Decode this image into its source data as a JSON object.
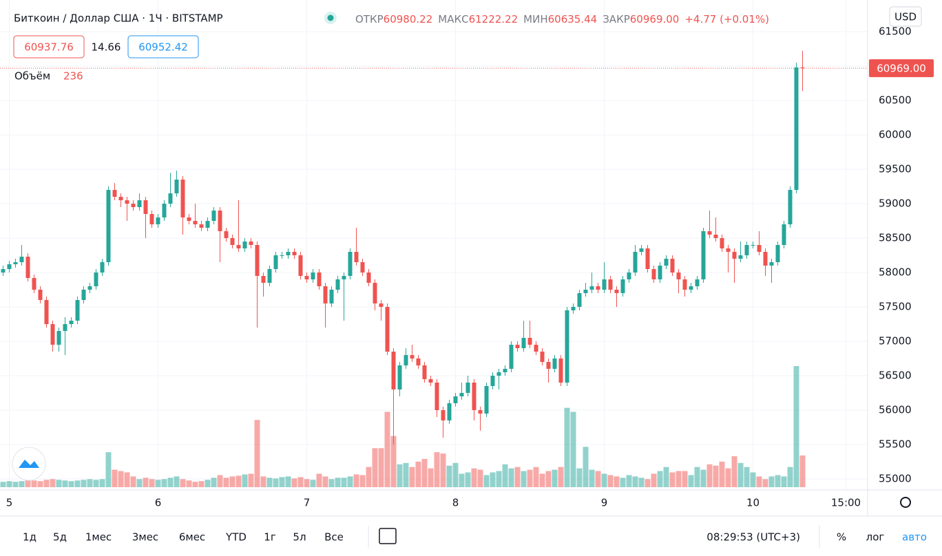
{
  "header": {
    "title": "Биткоин / Доллар США · 1Ч · BITSTAMP",
    "ohlc": [
      {
        "label": "ОТКР",
        "value": "60980.22"
      },
      {
        "label": "МАКС",
        "value": "61222.22"
      },
      {
        "label": "МИН",
        "value": "60635.44"
      },
      {
        "label": "ЗАКР",
        "value": "60969.00"
      }
    ],
    "change": "+4.77 (+0.01%)",
    "currency": "USD",
    "bid": "60937.76",
    "spread": "14.66",
    "ask": "60952.42",
    "volume_label": "Объём"
  },
  "chart_data": {
    "type": "candlestick",
    "x": [
      -1,
      0,
      1,
      2,
      3,
      4,
      5,
      6,
      7,
      8,
      9,
      10,
      11,
      12,
      13,
      14,
      15,
      16,
      17,
      18,
      19,
      20,
      21,
      22,
      23,
      24,
      25,
      26,
      27,
      28,
      29,
      30,
      31,
      32,
      33,
      34,
      35,
      36,
      37,
      38,
      39,
      40,
      41,
      42,
      43,
      44,
      45,
      46,
      47,
      48,
      49,
      50,
      51,
      52,
      53,
      54,
      55,
      56,
      57,
      58,
      59,
      60,
      61,
      62,
      63,
      64,
      65,
      66,
      67,
      68,
      69,
      70,
      71,
      72,
      73,
      74,
      75,
      76,
      77,
      78,
      79,
      80,
      81,
      82,
      83,
      84,
      85,
      86,
      87,
      88,
      89,
      90,
      91,
      92,
      93,
      94,
      95,
      96,
      97,
      98,
      99,
      100,
      101,
      102,
      103,
      104,
      105,
      106,
      107,
      108,
      109,
      110,
      111,
      112,
      113,
      114,
      115,
      116,
      117,
      118,
      119,
      120,
      121,
      122,
      123,
      124,
      125,
      126,
      127,
      128
    ],
    "open": [
      58000,
      58050,
      58120,
      58150,
      58230,
      57920,
      57750,
      57600,
      57250,
      56950,
      57150,
      57250,
      57300,
      57600,
      57750,
      57800,
      58000,
      58150,
      59200,
      59100,
      59050,
      59000,
      58950,
      59050,
      58850,
      58700,
      58800,
      59000,
      59150,
      59350,
      58800,
      58750,
      58700,
      58650,
      58750,
      58900,
      58600,
      58500,
      58400,
      58350,
      58450,
      58400,
      57950,
      57850,
      58050,
      58250,
      58250,
      58300,
      58250,
      57950,
      57900,
      58000,
      57800,
      57550,
      57750,
      57900,
      57950,
      58300,
      58150,
      58000,
      57850,
      57550,
      57500,
      56850,
      56300,
      56650,
      56800,
      56750,
      56650,
      56450,
      56400,
      56000,
      55850,
      56100,
      56200,
      56250,
      56400,
      56000,
      55950,
      56350,
      56500,
      56550,
      56600,
      56950,
      56900,
      57050,
      56950,
      56850,
      56700,
      56600,
      56750,
      56400,
      57450,
      57500,
      57700,
      57750,
      57800,
      57750,
      57900,
      57750,
      57700,
      57900,
      58000,
      58300,
      58350,
      58050,
      57900,
      58100,
      58200,
      58000,
      57900,
      57750,
      57800,
      57900,
      58600,
      58550,
      58500,
      58350,
      58300,
      58200,
      58250,
      58400,
      58400,
      58300,
      58100,
      58150,
      58400,
      58700,
      59200,
      60980.22
    ],
    "high": [
      58100,
      58170,
      58200,
      58400,
      58280,
      57970,
      57800,
      57650,
      57300,
      57200,
      57350,
      57350,
      57650,
      57800,
      57850,
      58050,
      58200,
      59250,
      59300,
      59150,
      59100,
      59050,
      59150,
      59100,
      58900,
      58850,
      59050,
      59450,
      59480,
      59400,
      58850,
      59000,
      58750,
      58800,
      58950,
      58950,
      58650,
      58550,
      59050,
      58500,
      58500,
      58450,
      58000,
      58100,
      58300,
      58300,
      58350,
      58350,
      58300,
      58000,
      58050,
      58050,
      57850,
      57800,
      57950,
      58000,
      58350,
      58650,
      58200,
      58050,
      57900,
      57600,
      57550,
      56900,
      56700,
      56900,
      56950,
      56800,
      56700,
      56500,
      56450,
      56050,
      56150,
      56250,
      56400,
      56500,
      56450,
      56050,
      56400,
      56550,
      56600,
      56650,
      57000,
      57000,
      57300,
      57300,
      57000,
      56900,
      56750,
      56800,
      56800,
      57500,
      57550,
      57750,
      57850,
      58000,
      57850,
      58150,
      57950,
      57800,
      57950,
      58050,
      58400,
      58400,
      58400,
      58100,
      58150,
      58250,
      58250,
      58050,
      57950,
      57850,
      57950,
      58650,
      58900,
      58800,
      58550,
      58400,
      58350,
      58450,
      58450,
      58450,
      58600,
      58350,
      58200,
      58450,
      58750,
      59250,
      61050,
      61222.22
    ],
    "low": [
      57950,
      58000,
      58070,
      58100,
      57870,
      57700,
      57550,
      57200,
      56850,
      56850,
      56800,
      57200,
      57250,
      57550,
      57700,
      57750,
      57950,
      58100,
      59050,
      58950,
      58750,
      58900,
      58900,
      58500,
      58650,
      58650,
      58750,
      58950,
      59100,
      58550,
      58700,
      58650,
      58600,
      58600,
      58700,
      58150,
      58450,
      58350,
      58300,
      58300,
      58350,
      57200,
      57650,
      57800,
      58000,
      58200,
      58200,
      58200,
      57900,
      57850,
      57850,
      57750,
      57200,
      57500,
      57700,
      57300,
      57900,
      58100,
      57950,
      57800,
      57450,
      57300,
      56800,
      55500,
      56200,
      56600,
      56700,
      56600,
      56400,
      56350,
      55900,
      55600,
      55800,
      56050,
      56150,
      56200,
      55850,
      55700,
      55900,
      56300,
      56300,
      56500,
      56550,
      56850,
      56850,
      56900,
      56800,
      56650,
      56400,
      56550,
      56350,
      56350,
      57400,
      57450,
      57650,
      57700,
      57700,
      57700,
      57700,
      57500,
      57650,
      57850,
      57950,
      58250,
      58000,
      57850,
      57850,
      58050,
      57950,
      57700,
      57650,
      57700,
      57750,
      57850,
      58500,
      58450,
      58300,
      58000,
      57850,
      58150,
      58200,
      58350,
      58250,
      57950,
      57850,
      58100,
      58350,
      58650,
      59150,
      60635.44
    ],
    "close": [
      58050,
      58120,
      58150,
      58230,
      57920,
      57750,
      57600,
      57250,
      56950,
      57150,
      57250,
      57300,
      57600,
      57750,
      57800,
      58000,
      58150,
      59200,
      59100,
      59050,
      59000,
      58950,
      59050,
      58850,
      58700,
      58800,
      59000,
      59150,
      59350,
      58800,
      58750,
      58700,
      58650,
      58750,
      58900,
      58600,
      58500,
      58400,
      58350,
      58450,
      58400,
      57950,
      57850,
      58050,
      58250,
      58250,
      58300,
      58250,
      57950,
      57900,
      58000,
      57800,
      57550,
      57750,
      57900,
      57950,
      58300,
      58150,
      58000,
      57850,
      57550,
      57500,
      56850,
      56300,
      56650,
      56800,
      56750,
      56650,
      56450,
      56400,
      56000,
      55850,
      56100,
      56200,
      56250,
      56400,
      56000,
      55950,
      56350,
      56500,
      56550,
      56600,
      56950,
      56900,
      57050,
      56950,
      56850,
      56700,
      56600,
      56750,
      56400,
      57450,
      57500,
      57700,
      57750,
      57800,
      57750,
      57900,
      57750,
      57700,
      57900,
      58000,
      58300,
      58350,
      58050,
      57900,
      58100,
      58200,
      58000,
      57900,
      57750,
      57800,
      57900,
      58600,
      58550,
      58500,
      58350,
      58300,
      58200,
      58250,
      58400,
      58400,
      58300,
      58100,
      58150,
      58400,
      58700,
      59200,
      60980.22,
      60969
    ],
    "volume": [
      40,
      45,
      40,
      45,
      55,
      50,
      45,
      55,
      60,
      55,
      50,
      45,
      50,
      55,
      60,
      55,
      60,
      260,
      130,
      120,
      110,
      80,
      60,
      70,
      60,
      55,
      60,
      70,
      80,
      60,
      50,
      40,
      45,
      55,
      70,
      90,
      70,
      80,
      85,
      95,
      100,
      500,
      80,
      70,
      65,
      75,
      80,
      65,
      75,
      60,
      55,
      100,
      80,
      60,
      70,
      70,
      80,
      95,
      90,
      150,
      290,
      290,
      560,
      380,
      170,
      180,
      150,
      190,
      210,
      140,
      260,
      250,
      160,
      180,
      100,
      110,
      140,
      130,
      90,
      110,
      120,
      170,
      140,
      150,
      120,
      130,
      150,
      100,
      120,
      130,
      150,
      590,
      560,
      140,
      300,
      130,
      120,
      100,
      90,
      80,
      70,
      90,
      80,
      70,
      60,
      100,
      120,
      150,
      110,
      120,
      120,
      90,
      150,
      130,
      170,
      160,
      190,
      140,
      230,
      180,
      150,
      110,
      80,
      60,
      80,
      90,
      80,
      150,
      900,
      236
    ],
    "last_price_label": "60969.00",
    "up_color": "#26a69a",
    "down_color": "#ef5350",
    "grid": true,
    "xlim": [
      -1.5,
      138.5
    ],
    "xticks": [
      {
        "value": 0,
        "label": "5"
      },
      {
        "value": 24,
        "label": "6"
      },
      {
        "value": 48,
        "label": "7"
      },
      {
        "value": 72,
        "label": "8"
      },
      {
        "value": 96,
        "label": "9"
      },
      {
        "value": 120,
        "label": "10"
      },
      {
        "value": 135,
        "label": "15:00"
      }
    ],
    "ylim": [
      54840,
      61960
    ],
    "yticks": [
      55000,
      55500,
      56000,
      56500,
      57000,
      57500,
      58000,
      58500,
      59000,
      59500,
      60000,
      60500,
      61000,
      61500
    ]
  },
  "toolbar": {
    "ranges": [
      "1д",
      "5д",
      "1мес",
      "3мес",
      "6мес",
      "YTD",
      "1г",
      "5л",
      "Все"
    ],
    "time": "08:29:53 (UTC+3)",
    "options": [
      "%",
      "лог",
      "авто"
    ]
  }
}
